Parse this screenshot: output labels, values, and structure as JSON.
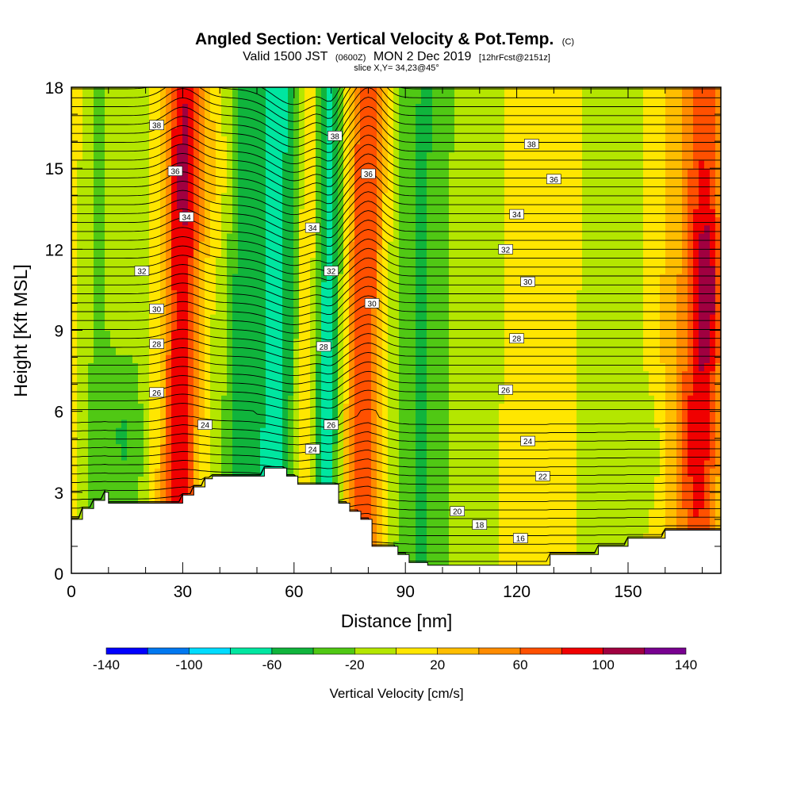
{
  "chart_data": {
    "type": "contour",
    "title": "Angled Section: Vertical Velocity & Pot.Temp.",
    "title_unit_tag": "(C)",
    "subtitle_pre": "Valid 1500 JST",
    "subtitle_z": "(0600Z)",
    "subtitle_mid": "MON 2 Dec 2019",
    "subtitle_fcst": "[12hrFcst@2151z]",
    "slice_text": "slice X,Y= 34,23@45°",
    "xlabel": "Distance [nm]",
    "ylabel": "Height [Kft MSL]",
    "xlim": [
      0,
      175
    ],
    "ylim": [
      0,
      18
    ],
    "x_ticks": [
      "0",
      "30",
      "60",
      "90",
      "120",
      "150"
    ],
    "x_tick_values": [
      0,
      30,
      60,
      90,
      120,
      150
    ],
    "y_ticks": [
      "0",
      "3",
      "6",
      "9",
      "12",
      "15",
      "18"
    ],
    "y_tick_values": [
      0,
      3,
      6,
      9,
      12,
      15,
      18
    ],
    "colorbar": {
      "title": "Vertical Velocity [cm/s]",
      "labels": [
        "-140",
        "-100",
        "-60",
        "-20",
        "20",
        "60",
        "100",
        "140"
      ],
      "label_values": [
        -140,
        -100,
        -60,
        -20,
        20,
        60,
        100,
        140
      ],
      "bins": [
        {
          "lo": -140,
          "hi": -120,
          "color": "#0000ff"
        },
        {
          "lo": -120,
          "hi": -100,
          "color": "#0078f0"
        },
        {
          "lo": -100,
          "hi": -80,
          "color": "#00dcff"
        },
        {
          "lo": -80,
          "hi": -60,
          "color": "#00e6a0"
        },
        {
          "lo": -60,
          "hi": -40,
          "color": "#10b43c"
        },
        {
          "lo": -40,
          "hi": -20,
          "color": "#50c814"
        },
        {
          "lo": -20,
          "hi": 0,
          "color": "#b4e600"
        },
        {
          "lo": 0,
          "hi": 20,
          "color": "#ffe600"
        },
        {
          "lo": 20,
          "hi": 40,
          "color": "#ffbe00"
        },
        {
          "lo": 40,
          "hi": 60,
          "color": "#ff8c00"
        },
        {
          "lo": 60,
          "hi": 80,
          "color": "#ff5000"
        },
        {
          "lo": 80,
          "hi": 100,
          "color": "#f00000"
        },
        {
          "lo": 100,
          "hi": 120,
          "color": "#a00040"
        },
        {
          "lo": 120,
          "hi": 140,
          "color": "#780090"
        }
      ]
    },
    "velocity_bands": [
      {
        "x": 7,
        "w": 3,
        "v": -28
      },
      {
        "x": 18,
        "w": 4,
        "v": -10
      },
      {
        "x": 29.5,
        "w": 3.5,
        "v": 85
      },
      {
        "x": 40,
        "w": 4,
        "v": -12
      },
      {
        "x": 46,
        "w": 3,
        "v": -45
      },
      {
        "x": 55,
        "w": 5,
        "v": -72
      },
      {
        "x": 63.5,
        "w": 2,
        "v": 40
      },
      {
        "x": 69,
        "w": 3,
        "v": -72
      },
      {
        "x": 79,
        "w": 3.5,
        "v": 75
      },
      {
        "x": 94,
        "w": 6,
        "v": -45
      },
      {
        "x": 112,
        "w": 10,
        "v": -12
      },
      {
        "x": 124,
        "w": 6,
        "v": 12
      },
      {
        "x": 148,
        "w": 8,
        "v": -18
      },
      {
        "x": 163,
        "w": 6,
        "v": 25
      },
      {
        "x": 170,
        "w": 3.5,
        "v": 55
      }
    ],
    "velocity_blobs": [
      {
        "x": 14,
        "y": 5,
        "sx": 4,
        "sy": 2.5,
        "v": -40
      },
      {
        "x": 172,
        "y": 10.5,
        "sx": 3,
        "sy": 2.5,
        "v": 50
      },
      {
        "x": 167,
        "y": 5,
        "sx": 6,
        "sy": 2,
        "v": 20
      },
      {
        "x": 36,
        "y": 15,
        "sx": 6,
        "sy": 2.5,
        "v": 25
      },
      {
        "x": 157,
        "y": 4.5,
        "sx": 4,
        "sy": 1.8,
        "v": -25
      }
    ],
    "terrain": [
      [
        0,
        2.0
      ],
      [
        3,
        2.0
      ],
      [
        3,
        2.4
      ],
      [
        6,
        2.4
      ],
      [
        6,
        2.7
      ],
      [
        9,
        2.7
      ],
      [
        9,
        3.0
      ],
      [
        10,
        3.0
      ],
      [
        10,
        2.6
      ],
      [
        30,
        2.6
      ],
      [
        30,
        2.9
      ],
      [
        33,
        2.9
      ],
      [
        33,
        3.2
      ],
      [
        36,
        3.2
      ],
      [
        36,
        3.5
      ],
      [
        38,
        3.5
      ],
      [
        38,
        3.6
      ],
      [
        52,
        3.6
      ],
      [
        52,
        3.9
      ],
      [
        58,
        3.9
      ],
      [
        58,
        3.6
      ],
      [
        61,
        3.6
      ],
      [
        61,
        3.3
      ],
      [
        72,
        3.3
      ],
      [
        72,
        2.6
      ],
      [
        75,
        2.6
      ],
      [
        75,
        2.3
      ],
      [
        78,
        2.3
      ],
      [
        78,
        2.0
      ],
      [
        81,
        2.0
      ],
      [
        81,
        1.0
      ],
      [
        88,
        1.0
      ],
      [
        88,
        0.7
      ],
      [
        91,
        0.7
      ],
      [
        91,
        0.4
      ],
      [
        96,
        0.4
      ],
      [
        96,
        0.3
      ],
      [
        129,
        0.3
      ],
      [
        129,
        0.7
      ],
      [
        142,
        0.7
      ],
      [
        142,
        1.0
      ],
      [
        150,
        1.0
      ],
      [
        150,
        1.3
      ],
      [
        160,
        1.3
      ],
      [
        160,
        1.6
      ],
      [
        175,
        1.6
      ]
    ],
    "theta_labels": [
      {
        "text": "38",
        "x": 23,
        "y": 16.6
      },
      {
        "text": "36",
        "x": 28,
        "y": 14.9
      },
      {
        "text": "34",
        "x": 31,
        "y": 13.2
      },
      {
        "text": "32",
        "x": 19,
        "y": 11.2
      },
      {
        "text": "30",
        "x": 23,
        "y": 9.8
      },
      {
        "text": "28",
        "x": 23,
        "y": 8.5
      },
      {
        "text": "26",
        "x": 23,
        "y": 6.7
      },
      {
        "text": "24",
        "x": 36,
        "y": 5.5
      },
      {
        "text": "38",
        "x": 71,
        "y": 16.2
      },
      {
        "text": "36",
        "x": 80,
        "y": 14.8
      },
      {
        "text": "34",
        "x": 65,
        "y": 12.8
      },
      {
        "text": "32",
        "x": 70,
        "y": 11.2
      },
      {
        "text": "30",
        "x": 81,
        "y": 10.0
      },
      {
        "text": "28",
        "x": 68,
        "y": 8.4
      },
      {
        "text": "26",
        "x": 70,
        "y": 5.5
      },
      {
        "text": "24",
        "x": 65,
        "y": 4.6
      },
      {
        "text": "38",
        "x": 124,
        "y": 15.9
      },
      {
        "text": "36",
        "x": 130,
        "y": 14.6
      },
      {
        "text": "34",
        "x": 120,
        "y": 13.3
      },
      {
        "text": "32",
        "x": 117,
        "y": 12.0
      },
      {
        "text": "30",
        "x": 123,
        "y": 10.8
      },
      {
        "text": "28",
        "x": 120,
        "y": 8.7
      },
      {
        "text": "26",
        "x": 117,
        "y": 6.8
      },
      {
        "text": "24",
        "x": 123,
        "y": 4.9
      },
      {
        "text": "22",
        "x": 127,
        "y": 3.6
      },
      {
        "text": "20",
        "x": 104,
        "y": 2.3
      },
      {
        "text": "18",
        "x": 110,
        "y": 1.8
      },
      {
        "text": "16",
        "x": 121,
        "y": 1.3
      }
    ]
  }
}
